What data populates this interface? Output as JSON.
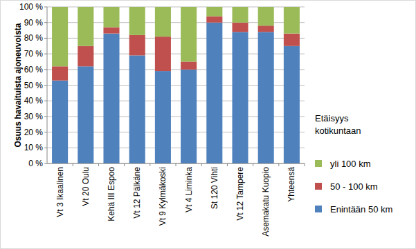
{
  "chart_data": {
    "type": "bar",
    "stacked": true,
    "y_label": "Osuus havaituista ajoneuvoista",
    "legend_title": "Etäisyys kotikuntaan",
    "legend": "right",
    "grid": true,
    "categories": [
      "Vt 3 Ikaalinen",
      "Vt 20 Oulu",
      "Kehä III Espoo",
      "Vt 12 Pälkäne",
      "Vt 9 Kylmäkoski",
      "Vt 4 Liminka",
      "St 120 Vihti",
      "Vt 12 Tampere",
      "Asemakatu Kuopio",
      "Yhteensä"
    ],
    "series": [
      {
        "name": "Enintään 50 km",
        "color": "#4f81bd",
        "values": [
          53,
          62,
          83,
          69,
          59,
          60,
          90,
          84,
          84,
          75
        ]
      },
      {
        "name": "50 - 100 km",
        "color": "#c0504d",
        "values": [
          9,
          13,
          4,
          13,
          22,
          5,
          4,
          6,
          4,
          8
        ]
      },
      {
        "name": "yli 100 km",
        "color": "#9bbb59",
        "values": [
          38,
          25,
          13,
          18,
          19,
          35,
          6,
          10,
          12,
          17
        ]
      }
    ],
    "ylim": [
      0,
      100
    ],
    "yticks": [
      {
        "value": 0,
        "label": "0 %"
      },
      {
        "value": 10,
        "label": "10 %"
      },
      {
        "value": 20,
        "label": "20 %"
      },
      {
        "value": 30,
        "label": "30 %"
      },
      {
        "value": 40,
        "label": "40 %"
      },
      {
        "value": 50,
        "label": "50 %"
      },
      {
        "value": 60,
        "label": "60 %"
      },
      {
        "value": 70,
        "label": "70 %"
      },
      {
        "value": 80,
        "label": "80 %"
      },
      {
        "value": 90,
        "label": "90 %"
      },
      {
        "value": 100,
        "label": "100 %"
      }
    ]
  }
}
